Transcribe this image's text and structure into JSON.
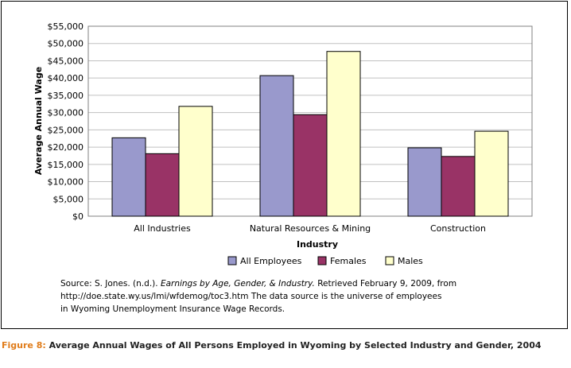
{
  "chart_data": {
    "type": "bar",
    "title": "",
    "xlabel": "Industry",
    "ylabel": "Average Annual Wage",
    "ylim": [
      0,
      55000
    ],
    "yticks": [
      "$0",
      "$5,000",
      "$10,000",
      "$15,000",
      "$20,000",
      "$25,000",
      "$30,000",
      "$35,000",
      "$40,000",
      "$45,000",
      "$50,000",
      "$55,000"
    ],
    "categories": [
      "All Industries",
      "Natural Resources & Mining",
      "Construction"
    ],
    "series": [
      {
        "name": "All Employees",
        "color": "#9999cc",
        "values": [
          22700,
          40700,
          19800
        ]
      },
      {
        "name": "Females",
        "color": "#993366",
        "values": [
          18100,
          29400,
          17300
        ]
      },
      {
        "name": "Males",
        "color": "#ffffcc",
        "values": [
          31800,
          47700,
          24600
        ]
      }
    ],
    "grid": true,
    "legend": "bottom"
  },
  "source": {
    "prefix": "Source: S. Jones. (n.d.).",
    "title_italic": "Earnings by Age, Gender, & Industry.",
    "line1_suffix": "Retrieved February 9, 2009, from",
    "line2": "http://doe.state.wy.us/lmi/wfdemog/toc3.htm The data source is the universe of employees",
    "line3": "in Wyoming Unemployment Insurance Wage Records."
  },
  "caption": {
    "figure_label": "Figure 8:",
    "text": "Average Annual Wages of All Persons Employed in Wyoming by Selected Industry and Gender, 2004"
  }
}
